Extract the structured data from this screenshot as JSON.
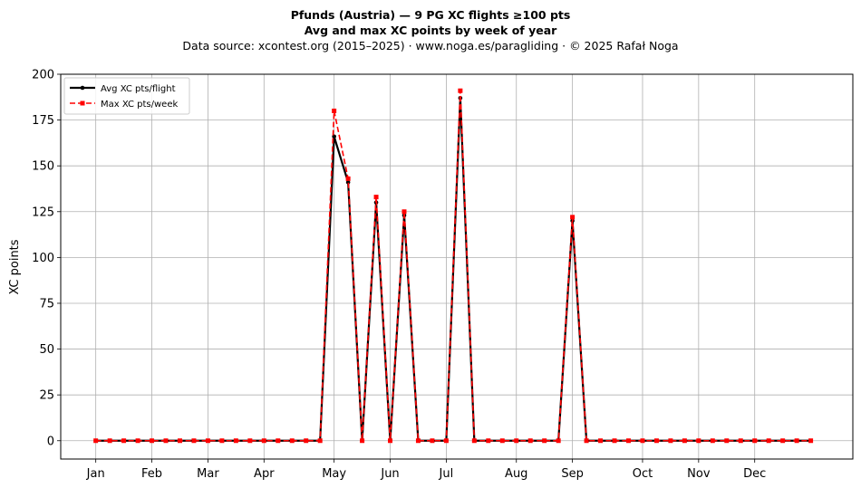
{
  "header": {
    "title_line1": "Pfunds (Austria)  —  9 PG XC flights ≥100 pts",
    "title_line2": "Avg and max XC points by week of year",
    "title_line3": "Data source: xcontest.org (2015–2025)  ·  www.noga.es/paragliding  ·  © 2025 Rafał Noga"
  },
  "chart_data": {
    "type": "line",
    "xlabel": "",
    "ylabel": "XC points",
    "ylim": [
      -10,
      200
    ],
    "yticks": [
      0,
      25,
      50,
      75,
      100,
      125,
      150,
      175,
      200
    ],
    "grid": true,
    "legend_position": "upper-left",
    "x_tick_labels": [
      {
        "label": "Jan",
        "week": 1
      },
      {
        "label": "Feb",
        "week": 5
      },
      {
        "label": "Mar",
        "week": 9
      },
      {
        "label": "Apr",
        "week": 13
      },
      {
        "label": "May",
        "week": 18
      },
      {
        "label": "Jun",
        "week": 22
      },
      {
        "label": "Jul",
        "week": 26
      },
      {
        "label": "Aug",
        "week": 31
      },
      {
        "label": "Sep",
        "week": 35
      },
      {
        "label": "Oct",
        "week": 40
      },
      {
        "label": "Nov",
        "week": 44
      },
      {
        "label": "Dec",
        "week": 48
      }
    ],
    "weeks": [
      1,
      2,
      3,
      4,
      5,
      6,
      7,
      8,
      9,
      10,
      11,
      12,
      13,
      14,
      15,
      16,
      17,
      18,
      19,
      20,
      21,
      22,
      23,
      24,
      25,
      26,
      27,
      28,
      29,
      30,
      31,
      32,
      33,
      34,
      35,
      36,
      37,
      38,
      39,
      40,
      41,
      42,
      43,
      44,
      45,
      46,
      47,
      48,
      49,
      50,
      51,
      52
    ],
    "series": [
      {
        "name": "Avg XC pts/flight",
        "color": "#000000",
        "style": "solid",
        "marker": "circle",
        "values": [
          0,
          0,
          0,
          0,
          0,
          0,
          0,
          0,
          0,
          0,
          0,
          0,
          0,
          0,
          0,
          0,
          0,
          166,
          141,
          0,
          130,
          0,
          123,
          0,
          0,
          0,
          187,
          0,
          0,
          0,
          0,
          0,
          0,
          0,
          120,
          0,
          0,
          0,
          0,
          0,
          0,
          0,
          0,
          0,
          0,
          0,
          0,
          0,
          0,
          0,
          0,
          0
        ]
      },
      {
        "name": "Max XC pts/week",
        "color": "#ff0000",
        "style": "dashed",
        "marker": "square",
        "values": [
          0,
          0,
          0,
          0,
          0,
          0,
          0,
          0,
          0,
          0,
          0,
          0,
          0,
          0,
          0,
          0,
          0,
          180,
          143,
          0,
          133,
          0,
          125,
          0,
          0,
          0,
          191,
          0,
          0,
          0,
          0,
          0,
          0,
          0,
          122,
          0,
          0,
          0,
          0,
          0,
          0,
          0,
          0,
          0,
          0,
          0,
          0,
          0,
          0,
          0,
          0,
          0
        ]
      }
    ]
  }
}
